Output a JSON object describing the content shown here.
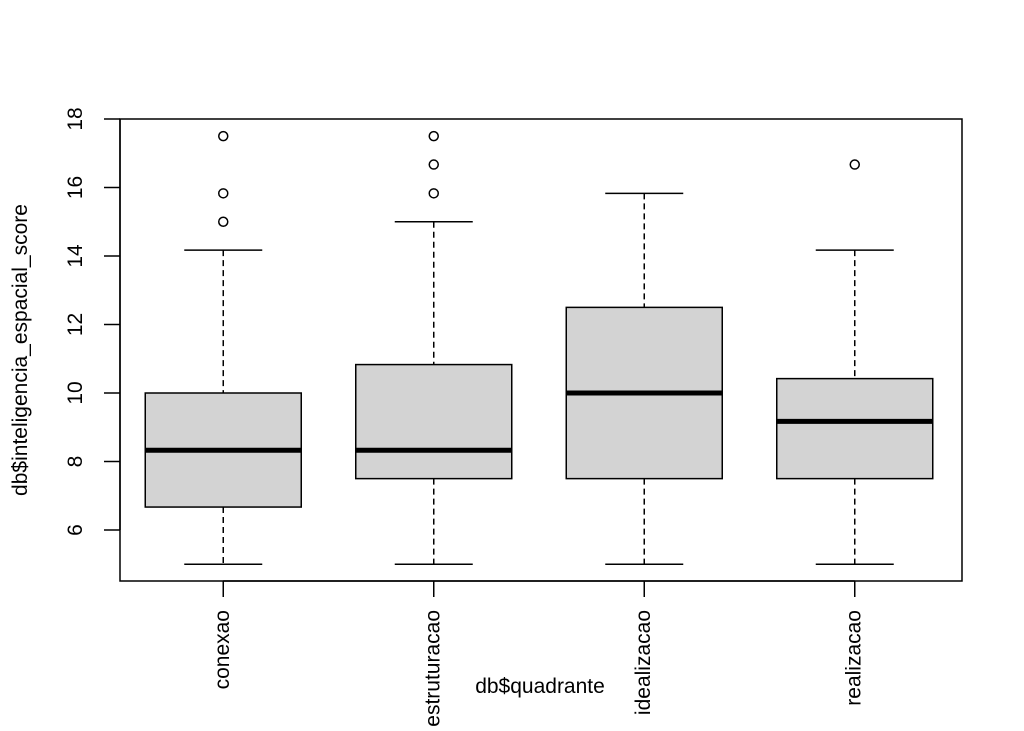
{
  "chart_data": {
    "type": "boxplot",
    "title": "",
    "xlabel": "db$quadrante",
    "ylabel": "db$inteligencia_espacial_score",
    "ylim": [
      4.5,
      18
    ],
    "yticks": [
      6,
      8,
      10,
      12,
      14,
      16,
      18
    ],
    "grid": false,
    "box_fill": "#d3d3d3",
    "stroke": "#000000",
    "categories": [
      "conexao",
      "estruturacao",
      "idealizacao",
      "realizacao"
    ],
    "boxes": [
      {
        "category": "conexao",
        "whisker_low": 5,
        "q1": 6.67,
        "median": 8.33,
        "q3": 10,
        "whisker_high": 14.17,
        "outliers": [
          15,
          15.83,
          17.5
        ]
      },
      {
        "category": "estruturacao",
        "whisker_low": 5,
        "q1": 7.5,
        "median": 8.33,
        "q3": 10.83,
        "whisker_high": 15,
        "outliers": [
          15.83,
          16.67,
          17.5
        ]
      },
      {
        "category": "idealizacao",
        "whisker_low": 5,
        "q1": 7.5,
        "median": 10,
        "q3": 12.5,
        "whisker_high": 15.83,
        "outliers": []
      },
      {
        "category": "realizacao",
        "whisker_low": 5,
        "q1": 7.5,
        "median": 9.17,
        "q3": 10.42,
        "whisker_high": 14.17,
        "outliers": [
          16.67
        ]
      }
    ]
  }
}
